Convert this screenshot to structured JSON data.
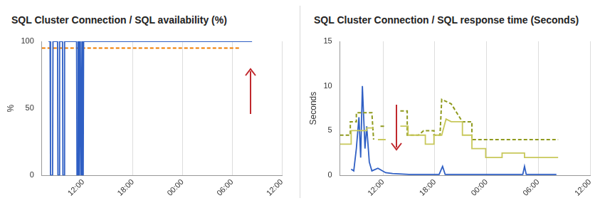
{
  "chart_data": [
    {
      "type": "line",
      "title": "SQL Cluster Connection / SQL availability (%)",
      "y_label": "%",
      "xlim": [
        7,
        36
      ],
      "xticks": [
        {
          "value": 12,
          "label": "12:00"
        },
        {
          "value": 18,
          "label": "18:00"
        },
        {
          "value": 24,
          "label": "00:00"
        },
        {
          "value": 30,
          "label": "06:00"
        },
        {
          "value": 36,
          "label": "12:00"
        }
      ],
      "ylim": [
        0,
        100
      ],
      "yticks": [
        0,
        50,
        100
      ],
      "grid": "x",
      "series": [
        {
          "color": "#2f5fc4",
          "line_style": "solid",
          "x": [
            7.8,
            8.0,
            8.05,
            8.3,
            8.35,
            8.9,
            8.95,
            9.1,
            9.15,
            9.5,
            9.55,
            9.7,
            9.75,
            11.2,
            11.25,
            11.35,
            11.4,
            11.5,
            11.55,
            11.65,
            11.75,
            11.85,
            11.9,
            12.0,
            12.05,
            32.4
          ],
          "values": [
            100,
            100,
            0,
            0,
            100,
            100,
            0,
            0,
            100,
            100,
            0,
            0,
            100,
            100,
            0,
            0,
            100,
            100,
            0,
            100,
            0,
            100,
            0,
            0,
            100,
            100
          ]
        },
        {
          "color": "#f07c00",
          "line_style": "dashed",
          "x": [
            7,
            31
          ],
          "values": [
            95,
            95
          ]
        }
      ]
    },
    {
      "type": "line",
      "title": "SQL Cluster Connection / SQL response time (Seconds)",
      "y_label": "Seconds",
      "xlim": [
        7,
        36
      ],
      "xticks": [
        {
          "value": 12,
          "label": "12:00"
        },
        {
          "value": 18,
          "label": "18:00"
        },
        {
          "value": 24,
          "label": "00:00"
        },
        {
          "value": 30,
          "label": "06:00"
        },
        {
          "value": 36,
          "label": "12:00"
        }
      ],
      "ylim": [
        0,
        15
      ],
      "yticks": [
        0,
        5,
        10,
        15
      ],
      "grid": "x",
      "series": [
        {
          "color": "#c8c85a",
          "line_style": "solid",
          "x": [
            7.0,
            8.3,
            8.3,
            10.1,
            10.1,
            10.9,
            11.0,
            11.4,
            12.3,
            12.4,
            14.0,
            14.9,
            14.9,
            16.1,
            16.9,
            16.9,
            17.9,
            17.9,
            18.8,
            19.3,
            19.9,
            21.2,
            21.2,
            22.3,
            22.3,
            23.9,
            23.9,
            25.8,
            25.8,
            28.4,
            28.4,
            32.3
          ],
          "values": [
            3.5,
            3.5,
            5.0,
            5.0,
            5.3,
            5.3,
            null,
            4.0,
            4.0,
            null,
            5.5,
            5.5,
            4.5,
            4.5,
            4.5,
            3.5,
            3.5,
            4.5,
            4.5,
            6.3,
            6.0,
            6.0,
            4.5,
            4.5,
            3.0,
            3.0,
            2.0,
            2.0,
            2.5,
            2.5,
            2.0,
            2.0
          ]
        },
        {
          "color": "#8f9a1e",
          "line_style": "dashed",
          "x": [
            7.0,
            8.2,
            8.2,
            8.9,
            8.9,
            10.7,
            10.9,
            11.0,
            11.7,
            12.3,
            12.4,
            14.0,
            14.8,
            14.8,
            16.1,
            16.7,
            17.9,
            17.9,
            18.6,
            18.8,
            19.9,
            21.2,
            22.3,
            22.3,
            32.3
          ],
          "values": [
            4.5,
            4.5,
            6.0,
            6.0,
            7.0,
            7.0,
            4.0,
            null,
            5.5,
            5.5,
            null,
            7.2,
            7.2,
            4.5,
            4.5,
            5.0,
            5.0,
            4.5,
            4.5,
            8.5,
            8.0,
            6.0,
            6.0,
            4.0,
            4.0
          ]
        },
        {
          "color": "#2f5fc4",
          "line_style": "solid",
          "x": [
            8.3,
            8.6,
            8.9,
            9.2,
            9.4,
            9.6,
            9.9,
            10.1,
            10.4,
            10.7,
            11.4,
            12.3,
            13.1,
            15.0,
            18.5,
            18.9,
            19.2,
            28.2,
            28.4,
            28.6,
            32.1
          ],
          "values": [
            0.7,
            0.5,
            3.0,
            6.5,
            2.0,
            10.0,
            3.0,
            5.5,
            1.5,
            0.5,
            0.8,
            0.3,
            0.2,
            0.1,
            0.1,
            1.0,
            0.1,
            0.1,
            1.0,
            0.1,
            0.1
          ]
        }
      ]
    }
  ]
}
